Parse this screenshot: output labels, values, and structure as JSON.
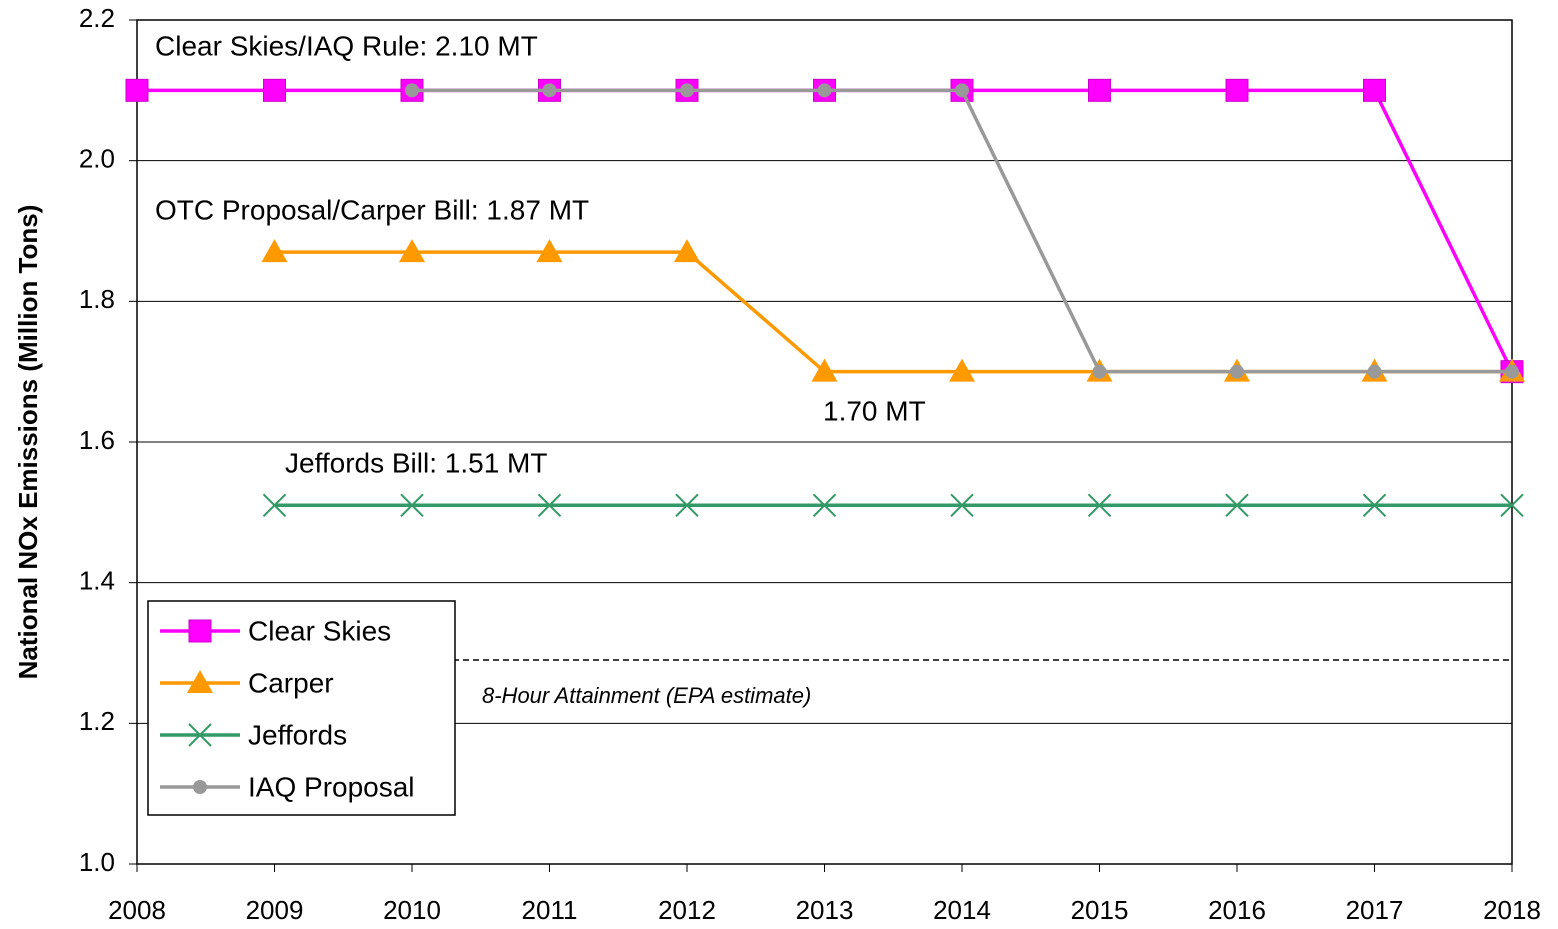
{
  "chart_data": {
    "type": "line",
    "y_label": "National NOx Emissions (Million Tons)",
    "x": [
      2008,
      2009,
      2010,
      2011,
      2012,
      2013,
      2014,
      2015,
      2016,
      2017,
      2018
    ],
    "series": [
      {
        "name": "Clear Skies",
        "color": "#ff00ff",
        "marker": "square",
        "values": [
          2.1,
          2.1,
          2.1,
          2.1,
          2.1,
          2.1,
          2.1,
          2.1,
          2.1,
          2.1,
          1.7
        ]
      },
      {
        "name": "Carper",
        "color": "#ff9900",
        "marker": "triangle",
        "values": [
          null,
          1.87,
          1.87,
          1.87,
          1.87,
          1.7,
          1.7,
          1.7,
          1.7,
          1.7,
          1.7
        ]
      },
      {
        "name": "Jeffords",
        "color": "#339966",
        "marker": "x",
        "values": [
          null,
          1.51,
          1.51,
          1.51,
          1.51,
          1.51,
          1.51,
          1.51,
          1.51,
          1.51,
          1.51
        ]
      },
      {
        "name": "IAQ Proposal",
        "color": "#999999",
        "marker": "circle",
        "values": [
          null,
          null,
          2.1,
          2.1,
          2.1,
          2.1,
          2.1,
          1.7,
          1.7,
          1.7,
          1.7
        ]
      }
    ],
    "xlim": [
      2008,
      2018
    ],
    "xticks": [
      2008,
      2009,
      2010,
      2011,
      2012,
      2013,
      2014,
      2015,
      2016,
      2017,
      2018
    ],
    "ylim": [
      1.0,
      2.2
    ],
    "yticks": [
      {
        "value": 1.0,
        "label": "1.0"
      },
      1.2,
      1.4,
      1.6,
      1.8,
      {
        "value": 2.0,
        "label": "2.0"
      },
      2.2
    ],
    "grid": true,
    "legend": "lower left",
    "annotations": [
      "Clear Skies/IAQ Rule: 2.10 MT",
      "OTC Proposal/Carper Bill: 1.87 MT",
      "1.70 MT",
      "Jeffords Bill: 1.51 MT"
    ],
    "reference_line": {
      "value": 1.29,
      "label": "8-Hour Attainment (EPA estimate)"
    }
  }
}
